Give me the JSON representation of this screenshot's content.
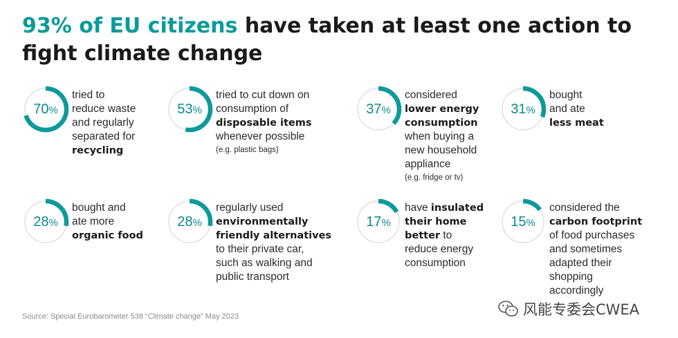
{
  "title": {
    "accent": "93% of EU citizens",
    "rest": " have taken at least one action to fight climate change"
  },
  "source": "Source: Special Eurobarometer 538 “Climate change” May 2023",
  "watermark": "风能专委会CWEA",
  "colors": {
    "accent": "#0c9a9a",
    "ring_bg": "#d9d9d9"
  },
  "chart_data": {
    "type": "table",
    "unit": "%",
    "items": [
      {
        "value": 70,
        "pct": "70",
        "sym": "%",
        "lines": [
          [
            {
              "t": "tried to"
            }
          ],
          [
            {
              "t": "reduce waste"
            }
          ],
          [
            {
              "t": "and regularly"
            }
          ],
          [
            {
              "t": "separated for"
            }
          ],
          [
            {
              "t": "recycling",
              "b": true
            }
          ]
        ]
      },
      {
        "value": 53,
        "pct": "53",
        "sym": "%",
        "lines": [
          [
            {
              "t": "tried to cut down on"
            }
          ],
          [
            {
              "t": "consumption of"
            }
          ],
          [
            {
              "t": "disposable items",
              "b": true
            }
          ],
          [
            {
              "t": "whenever possible"
            }
          ],
          [
            {
              "t": "(e.g. plastic bags)",
              "s": true
            }
          ]
        ]
      },
      {
        "value": 37,
        "pct": "37",
        "sym": "%",
        "lines": [
          [
            {
              "t": "considered"
            }
          ],
          [
            {
              "t": "lower energy",
              "b": true
            }
          ],
          [
            {
              "t": "consumption",
              "b": true
            }
          ],
          [
            {
              "t": "when buying a"
            }
          ],
          [
            {
              "t": "new household"
            }
          ],
          [
            {
              "t": "appliance"
            }
          ],
          [
            {
              "t": "(e.g. fridge or tv)",
              "s": true
            }
          ]
        ]
      },
      {
        "value": 31,
        "pct": "31",
        "sym": "%",
        "lines": [
          [
            {
              "t": "bought"
            }
          ],
          [
            {
              "t": "and ate"
            }
          ],
          [
            {
              "t": "less meat",
              "b": true
            }
          ]
        ]
      },
      {
        "value": 28,
        "pct": "28",
        "sym": "%",
        "lines": [
          [
            {
              "t": "bought and"
            }
          ],
          [
            {
              "t": "ate more"
            }
          ],
          [
            {
              "t": "organic food",
              "b": true
            }
          ]
        ]
      },
      {
        "value": 28,
        "pct": "28",
        "sym": "%",
        "lines": [
          [
            {
              "t": "regularly used"
            }
          ],
          [
            {
              "t": "environmentally",
              "b": true
            }
          ],
          [
            {
              "t": "friendly alternatives",
              "b": true
            }
          ],
          [
            {
              "t": "to their private car,"
            }
          ],
          [
            {
              "t": "such as walking and"
            }
          ],
          [
            {
              "t": "public transport"
            }
          ]
        ]
      },
      {
        "value": 17,
        "pct": "17",
        "sym": "%",
        "lines": [
          [
            {
              "t": "have "
            },
            {
              "t": "insulated",
              "b": true
            }
          ],
          [
            {
              "t": "their home",
              "b": true
            }
          ],
          [
            {
              "t": "better",
              "b": true
            },
            {
              "t": " to"
            }
          ],
          [
            {
              "t": "reduce energy"
            }
          ],
          [
            {
              "t": "consumption"
            }
          ]
        ]
      },
      {
        "value": 15,
        "pct": "15",
        "sym": "%",
        "lines": [
          [
            {
              "t": "considered the"
            }
          ],
          [
            {
              "t": "carbon footprint",
              "b": true
            }
          ],
          [
            {
              "t": "of food purchases"
            }
          ],
          [
            {
              "t": "and sometimes"
            }
          ],
          [
            {
              "t": "adapted their"
            }
          ],
          [
            {
              "t": "shopping"
            }
          ],
          [
            {
              "t": "accordingly"
            }
          ]
        ]
      }
    ]
  }
}
